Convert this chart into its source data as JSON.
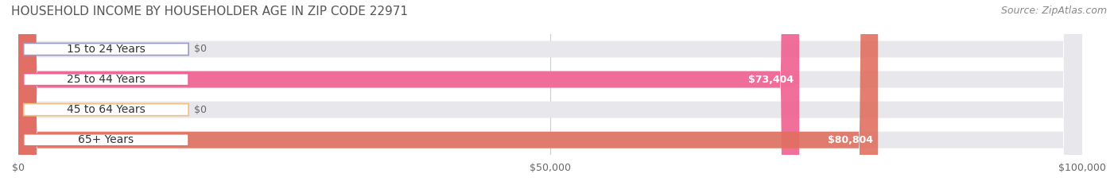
{
  "title": "HOUSEHOLD INCOME BY HOUSEHOLDER AGE IN ZIP CODE 22971",
  "source": "Source: ZipAtlas.com",
  "categories": [
    "15 to 24 Years",
    "25 to 44 Years",
    "45 to 64 Years",
    "65+ Years"
  ],
  "values": [
    0,
    73404,
    0,
    80804
  ],
  "bar_colors": [
    "#9999cc",
    "#f06090",
    "#f0c080",
    "#e07060"
  ],
  "label_colors": [
    "#9999cc",
    "#f06090",
    "#f0c080",
    "#e07060"
  ],
  "bar_bg_color": "#f0f0f0",
  "value_labels": [
    "$0",
    "$73,404",
    "$0",
    "$80,804"
  ],
  "xlim": [
    0,
    100000
  ],
  "xticks": [
    0,
    50000,
    100000
  ],
  "xtick_labels": [
    "$0",
    "$50,000",
    "$100,000"
  ],
  "background_color": "#ffffff",
  "title_fontsize": 11,
  "source_fontsize": 9,
  "label_fontsize": 10,
  "value_fontsize": 9,
  "bar_height": 0.55,
  "bar_bg_alpha": 0.35
}
